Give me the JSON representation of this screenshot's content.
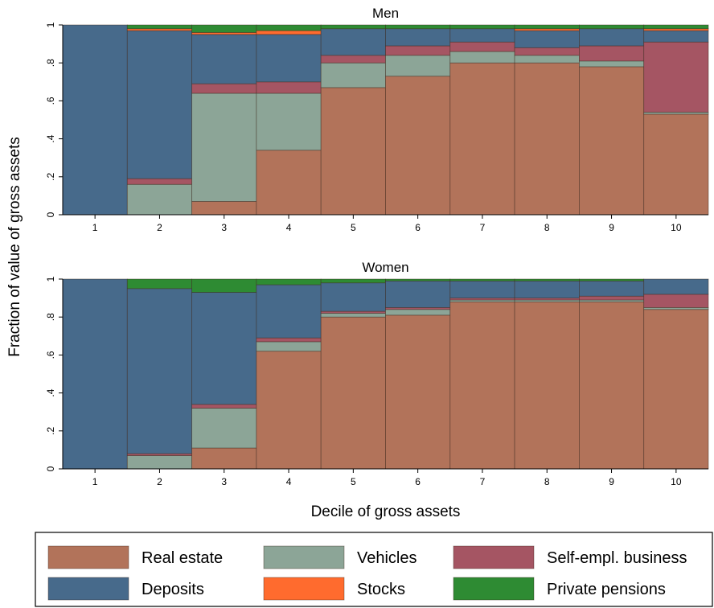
{
  "chart_data": {
    "type": "bar",
    "stacked": true,
    "colors": {
      "Real estate": "#b2735a",
      "Vehicles": "#8ca597",
      "Self-empl. business": "#a55563",
      "Deposits": "#476a8b",
      "Stocks": "#ff6b2e",
      "Private pensions": "#2e8b33"
    },
    "ylabel": "Fraction of value of gross assets",
    "xlabel": "Decile of gross assets",
    "ylim": [
      0,
      1
    ],
    "yticks": [
      0,
      0.2,
      0.4,
      0.6,
      0.8,
      1
    ],
    "ytick_labels": [
      "0",
      ".2",
      ".4",
      ".6",
      ".8",
      "1"
    ],
    "categories": [
      "1",
      "2",
      "3",
      "4",
      "5",
      "6",
      "7",
      "8",
      "9",
      "10"
    ],
    "legend": {
      "position": "bottom",
      "entries": [
        "Real estate",
        "Vehicles",
        "Self-empl. business",
        "Deposits",
        "Stocks",
        "Private pensions"
      ]
    },
    "panels": [
      {
        "title": "Men",
        "series": [
          {
            "name": "Real estate",
            "values": [
              0,
              0,
              0.07,
              0.34,
              0.67,
              0.73,
              0.8,
              0.8,
              0.78,
              0.53
            ]
          },
          {
            "name": "Vehicles",
            "values": [
              0,
              0.16,
              0.57,
              0.3,
              0.13,
              0.11,
              0.06,
              0.04,
              0.03,
              0.01
            ]
          },
          {
            "name": "Self-empl. business",
            "values": [
              0,
              0.03,
              0.05,
              0.06,
              0.04,
              0.05,
              0.05,
              0.04,
              0.08,
              0.37
            ]
          },
          {
            "name": "Deposits",
            "values": [
              1,
              0.78,
              0.26,
              0.25,
              0.14,
              0.09,
              0.07,
              0.09,
              0.09,
              0.06
            ]
          },
          {
            "name": "Stocks",
            "values": [
              0,
              0.01,
              0.01,
              0.02,
              0,
              0,
              0,
              0.01,
              0,
              0.01
            ]
          },
          {
            "name": "Private pensions",
            "values": [
              0,
              0.02,
              0.04,
              0.03,
              0.02,
              0.02,
              0.02,
              0.02,
              0.02,
              0.02
            ]
          }
        ]
      },
      {
        "title": "Women",
        "series": [
          {
            "name": "Real estate",
            "values": [
              0,
              0,
              0.11,
              0.62,
              0.8,
              0.81,
              0.88,
              0.88,
              0.88,
              0.84
            ]
          },
          {
            "name": "Vehicles",
            "values": [
              0,
              0.07,
              0.21,
              0.05,
              0.02,
              0.03,
              0.01,
              0.01,
              0.01,
              0.01
            ]
          },
          {
            "name": "Self-empl. business",
            "values": [
              0,
              0.01,
              0.02,
              0.02,
              0.01,
              0.01,
              0.01,
              0.01,
              0.02,
              0.07
            ]
          },
          {
            "name": "Deposits",
            "values": [
              1,
              0.87,
              0.59,
              0.28,
              0.15,
              0.14,
              0.09,
              0.09,
              0.08,
              0.08
            ]
          },
          {
            "name": "Stocks",
            "values": [
              0,
              0,
              0,
              0,
              0,
              0,
              0,
              0,
              0,
              0
            ]
          },
          {
            "name": "Private pensions",
            "values": [
              0,
              0.05,
              0.07,
              0.03,
              0.02,
              0.01,
              0.01,
              0.01,
              0.01,
              0
            ]
          }
        ]
      }
    ]
  }
}
